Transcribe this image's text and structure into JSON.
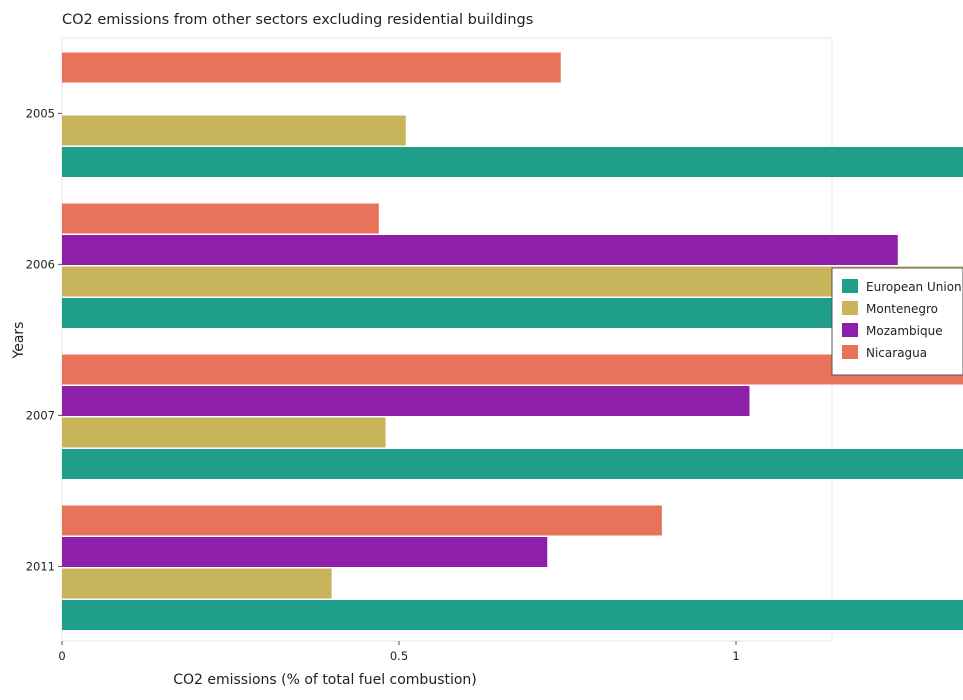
{
  "chart_data": {
    "type": "bar",
    "orientation": "horizontal",
    "title": "CO2 emissions from other sectors excluding residential buildings",
    "xlabel": "CO2 emissions (% of total fuel combustion)",
    "ylabel": "Years",
    "categories": [
      "2005",
      "2006",
      "2007",
      "2011"
    ],
    "xlim": [
      0,
      2.25
    ],
    "xticks": [
      "0",
      "0.5",
      "1",
      "1.5",
      "2"
    ],
    "grid": false,
    "legend_position": "right",
    "series": [
      {
        "name": "European Union",
        "color": "#1f9e89",
        "values": [
          2.17,
          2.1,
          2.03,
          1.99
        ]
      },
      {
        "name": "Montenegro",
        "color": "#c8b45a",
        "values": [
          0.51,
          1.8,
          0.48,
          0.4
        ]
      },
      {
        "name": "Mozambique",
        "color": "#8e1fa8",
        "values": [
          0,
          1.24,
          1.02,
          0.72
        ]
      },
      {
        "name": "Nicaragua",
        "color": "#e8735a",
        "values": [
          0.74,
          0.47,
          2.06,
          0.89
        ]
      }
    ]
  }
}
